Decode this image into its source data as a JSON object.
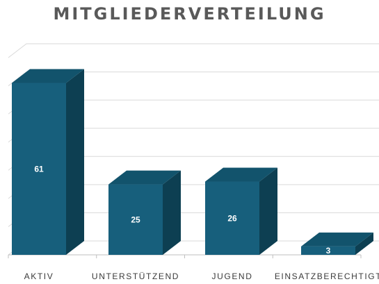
{
  "chart_data": {
    "type": "bar",
    "title": "MITGLIEDERVERTEILUNG",
    "categories": [
      "AKTIV",
      "UNTERSTÜTZEND",
      "JUGEND",
      "EINSATZBERECHTIGT"
    ],
    "values": [
      61,
      25,
      26,
      3
    ],
    "data_labels": [
      "61",
      "25",
      "26",
      "3"
    ],
    "ylim": [
      0,
      70
    ],
    "grid": true,
    "legend": "none",
    "style": "3d",
    "colors": {
      "bar_front": "#175f7c",
      "bar_top": "#12536c",
      "bar_side": "#0d3f52",
      "grid": "#d9d9d9",
      "axis": "#bfbfbf"
    }
  }
}
